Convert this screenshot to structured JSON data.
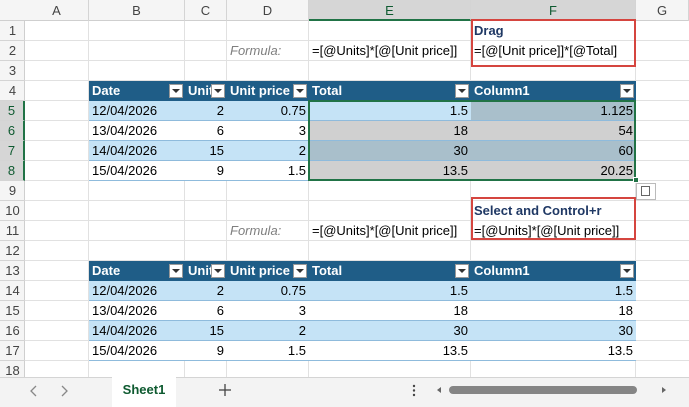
{
  "column_headers": [
    "A",
    "B",
    "C",
    "D",
    "E",
    "F",
    "G"
  ],
  "row_headers": [
    1,
    2,
    3,
    4,
    5,
    6,
    7,
    8,
    9,
    10,
    11,
    12,
    13,
    14,
    15,
    16,
    17,
    18
  ],
  "annotations": {
    "drag_label": "Drag",
    "drag_formula": "=[@[Unit price]]*[@Total]",
    "formula_label_1": "Formula:",
    "formula_1": "=[@Units]*[@[Unit price]]",
    "select_label": "Select and Control+r",
    "formula_label_2": "Formula:",
    "formula_2": "=[@Units]*[@[Unit price]]"
  },
  "table1": {
    "headers": [
      "Date",
      "Units",
      "Unit price",
      "Total",
      "Column1"
    ],
    "rows": [
      [
        "12/04/2026",
        2,
        0.75,
        1.5,
        1.125
      ],
      [
        "13/04/2026",
        6,
        3,
        18,
        54
      ],
      [
        "14/04/2026",
        15,
        2,
        30,
        60
      ],
      [
        "15/04/2026",
        9,
        1.5,
        13.5,
        20.25
      ]
    ]
  },
  "table2": {
    "headers": [
      "Date",
      "Units",
      "Unit price",
      "Total",
      "Column1"
    ],
    "rows": [
      [
        "12/04/2026",
        2,
        0.75,
        1.5,
        1.5
      ],
      [
        "13/04/2026",
        6,
        3,
        18,
        18
      ],
      [
        "14/04/2026",
        15,
        2,
        30,
        30
      ],
      [
        "15/04/2026",
        9,
        1.5,
        13.5,
        13.5
      ]
    ]
  },
  "sheet_tab": "Sheet1"
}
